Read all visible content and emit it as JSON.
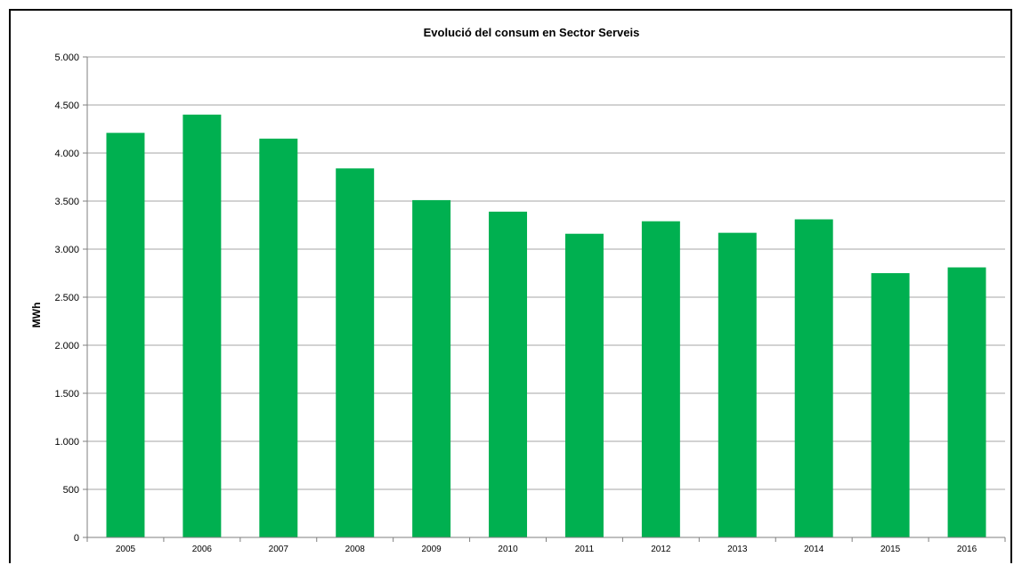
{
  "chart_data": {
    "type": "bar",
    "title": "Evolució del consum  en Sector Serveis",
    "xlabel": "",
    "ylabel": "MWh",
    "categories": [
      "2005",
      "2006",
      "2007",
      "2008",
      "2009",
      "2010",
      "2011",
      "2012",
      "2013",
      "2014",
      "2015",
      "2016"
    ],
    "values": [
      4210,
      4400,
      4150,
      3840,
      3510,
      3390,
      3160,
      3290,
      3170,
      3310,
      2750,
      2810
    ],
    "ylim": [
      0,
      5000
    ],
    "yticks": [
      0,
      500,
      1000,
      1500,
      2000,
      2500,
      3000,
      3500,
      4000,
      4500,
      5000
    ],
    "ytick_labels": [
      "0",
      "500",
      "1.000",
      "1.500",
      "2.000",
      "2.500",
      "3.000",
      "3.500",
      "4.000",
      "4.500",
      "5.000"
    ],
    "grid": true,
    "legend": "none",
    "bar_color": "#00b050",
    "grid_color": "#a6a6a6",
    "axis_color": "#7f7f7f"
  }
}
